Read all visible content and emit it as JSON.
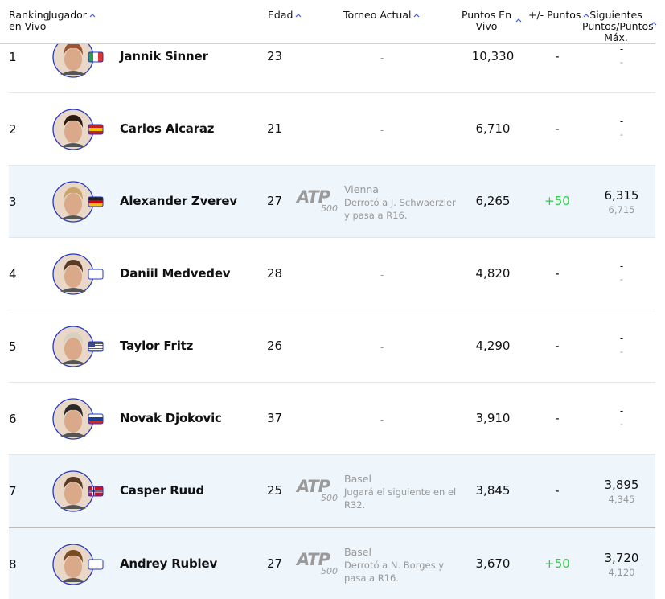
{
  "header": {
    "rank": "Ranking en Vivo",
    "player": "Jugador",
    "age": "Edad",
    "tournament": "Torneo Actual",
    "points": "Puntos En Vivo",
    "change": "+/- Puntos",
    "next": "Siguientes Puntos/Puntos Máx."
  },
  "table": {
    "rows": [
      {
        "rank": "1",
        "name": "Jannik Sinner",
        "age": "23",
        "tournament": "-",
        "points": "10,330",
        "change": "-",
        "next": "-",
        "max": "-"
      },
      {
        "rank": "2",
        "name": "Carlos Alcaraz",
        "age": "21",
        "tournament": "-",
        "points": "6,710",
        "change": "-",
        "next": "-",
        "max": "-"
      },
      {
        "rank": "3",
        "name": "Alexander Zverev",
        "age": "27",
        "tournament": {
          "brand": "ATP",
          "tier": "500",
          "name": "Vienna",
          "description": "Derrotó a J. Schwaerzler y pasa a R16."
        },
        "points": "6,265",
        "change": "+50",
        "next": "6,315",
        "max": "6,715"
      },
      {
        "rank": "4",
        "name": "Daniil Medvedev",
        "age": "28",
        "tournament": "-",
        "points": "4,820",
        "change": "-",
        "next": "-",
        "max": "-"
      },
      {
        "rank": "5",
        "name": "Taylor Fritz",
        "age": "26",
        "tournament": "-",
        "points": "4,290",
        "change": "-",
        "next": "-",
        "max": "-"
      },
      {
        "rank": "6",
        "name": "Novak Djokovic",
        "age": "37",
        "tournament": "-",
        "points": "3,910",
        "change": "-",
        "next": "-",
        "max": "-"
      },
      {
        "rank": "7",
        "name": "Casper Ruud",
        "age": "25",
        "tournament": {
          "brand": "ATP",
          "tier": "500",
          "name": "Basel",
          "description": "Jugará el siguiente en el R32."
        },
        "points": "3,845",
        "change": "-",
        "next": "3,895",
        "max": "4,345"
      },
      {
        "rank": "8",
        "name": "Andrey Rublev",
        "age": "27",
        "tournament": {
          "brand": "ATP",
          "tier": "500",
          "name": "Basel",
          "description": "Derrotó a N. Borges y pasa a R16."
        },
        "points": "3,670",
        "change": "+50",
        "next": "3,720",
        "max": "4,120"
      }
    ]
  }
}
